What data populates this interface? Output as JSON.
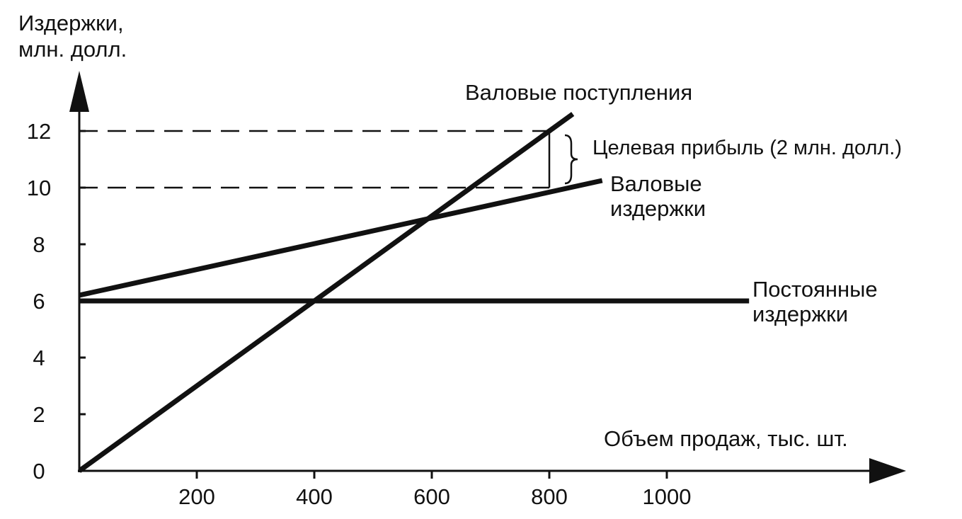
{
  "chart_data": {
    "type": "line",
    "title": "",
    "ylabel_lines": [
      "Издержки,",
      "млн. долл."
    ],
    "xlabel": "Объем продаж, тыс. шт.",
    "xlim": [
      0,
      1200
    ],
    "ylim": [
      0,
      13
    ],
    "x_ticks": [
      200,
      400,
      600,
      800,
      1000
    ],
    "y_ticks": [
      0,
      2,
      4,
      6,
      8,
      10,
      12
    ],
    "grid": false,
    "series": [
      {
        "key": "revenue",
        "label_lines": [
          "Валовые поступления"
        ],
        "x": [
          0,
          840
        ],
        "y": [
          0,
          12.6
        ]
      },
      {
        "key": "total_costs",
        "label_lines": [
          "Валовые",
          "издержки"
        ],
        "x": [
          0,
          890
        ],
        "y": [
          6.2,
          10.25
        ]
      },
      {
        "key": "fixed_costs",
        "label_lines": [
          "Постоянные",
          "издержки"
        ],
        "x": [
          0,
          1140
        ],
        "y": [
          6,
          6
        ]
      }
    ],
    "reference_lines": [
      {
        "axis": "y",
        "value": 12,
        "x_from": 0,
        "x_to": 800,
        "style": "dashed"
      },
      {
        "axis": "y",
        "value": 10,
        "x_from": 0,
        "x_to": 800,
        "style": "dashed"
      }
    ],
    "annotations": [
      {
        "key": "target_profit",
        "text": "Целевая прибыль (2 млн. долл.)",
        "x": 800,
        "y_from": 10,
        "y_to": 12
      }
    ],
    "colors": {
      "ink": "#111111",
      "background": "#ffffff"
    }
  }
}
